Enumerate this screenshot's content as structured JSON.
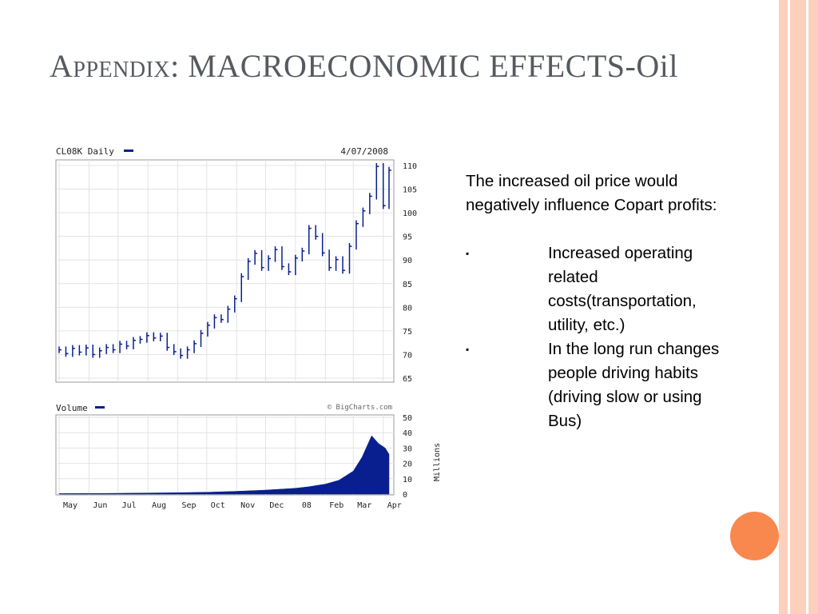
{
  "slide": {
    "title_prefix": "Appendix",
    "title_main": ": MACROECONOMIC EFFECTS-Oil"
  },
  "body": {
    "intro": "The increased oil price would negatively influence Copart profits:",
    "bullet_char": "▪",
    "bullets": [
      "Increased operating related costs(transportation, utility, etc.)",
      "In the long run changes people driving habits (driving slow or using Bus)"
    ]
  },
  "colors": {
    "series": "#0a1f8f",
    "accent_stripe": "#fbd1bd",
    "accent_circle": "#f8884e",
    "title": "#555a5f"
  },
  "chart_data": [
    {
      "type": "line",
      "title": "CL08K Daily",
      "date_label": "4/07/2008",
      "ylim": [
        65,
        110
      ],
      "y_ticks": [
        "110",
        "105",
        "100",
        "95",
        "90",
        "85",
        "80",
        "75",
        "70",
        "65"
      ],
      "x_ticks": [
        "May",
        "Jun",
        "Jul",
        "Aug",
        "Sep",
        "Oct",
        "Nov",
        "Dec",
        "08",
        "Feb",
        "Mar",
        "Apr"
      ],
      "grid": true,
      "series": [
        {
          "name": "CL08K Daily",
          "points": [
            [
              "2007-05-01",
              71.0
            ],
            [
              "2007-05-08",
              70.2
            ],
            [
              "2007-05-15",
              71.3
            ],
            [
              "2007-05-22",
              70.5
            ],
            [
              "2007-05-29",
              71.4
            ],
            [
              "2007-06-05",
              70.0
            ],
            [
              "2007-06-12",
              70.8
            ],
            [
              "2007-06-19",
              71.5
            ],
            [
              "2007-06-26",
              71.0
            ],
            [
              "2007-07-03",
              72.2
            ],
            [
              "2007-07-10",
              71.8
            ],
            [
              "2007-07-17",
              73.0
            ],
            [
              "2007-07-24",
              73.2
            ],
            [
              "2007-07-31",
              74.0
            ],
            [
              "2007-08-07",
              73.5
            ],
            [
              "2007-08-14",
              73.9
            ],
            [
              "2007-08-21",
              71.5
            ],
            [
              "2007-08-28",
              70.6
            ],
            [
              "2007-09-04",
              69.8
            ],
            [
              "2007-09-11",
              71.0
            ],
            [
              "2007-09-18",
              72.3
            ],
            [
              "2007-09-25",
              74.5
            ],
            [
              "2007-10-02",
              76.2
            ],
            [
              "2007-10-09",
              77.8
            ],
            [
              "2007-10-16",
              77.4
            ],
            [
              "2007-10-23",
              79.6
            ],
            [
              "2007-10-30",
              81.8
            ],
            [
              "2007-11-06",
              86.5
            ],
            [
              "2007-11-13",
              89.7
            ],
            [
              "2007-11-20",
              91.4
            ],
            [
              "2007-11-27",
              88.4
            ],
            [
              "2007-12-04",
              90.3
            ],
            [
              "2007-12-11",
              92.2
            ],
            [
              "2007-12-18",
              88.6
            ],
            [
              "2007-12-25",
              87.5
            ],
            [
              "2008-01-01",
              90.4
            ],
            [
              "2008-01-08",
              91.9
            ],
            [
              "2008-01-15",
              96.7
            ],
            [
              "2008-01-22",
              95.0
            ],
            [
              "2008-01-29",
              91.5
            ],
            [
              "2008-02-05",
              88.4
            ],
            [
              "2008-02-12",
              90.1
            ],
            [
              "2008-02-19",
              87.8
            ],
            [
              "2008-02-26",
              92.9
            ],
            [
              "2008-03-04",
              97.7
            ],
            [
              "2008-03-11",
              100.4
            ],
            [
              "2008-03-18",
              103.5
            ],
            [
              "2008-03-25",
              109.8
            ],
            [
              "2008-04-01",
              101.5
            ],
            [
              "2008-04-07",
              109.0
            ]
          ]
        }
      ]
    },
    {
      "type": "area",
      "title": "Volume",
      "watermark": "© BigCharts.com",
      "ylabel": "Millions",
      "ylim": [
        0,
        50
      ],
      "y_ticks": [
        "50",
        "40",
        "30",
        "20",
        "10",
        "0"
      ],
      "grid": true,
      "series": [
        {
          "name": "Volume",
          "points": [
            [
              "2007-05-01",
              0.3
            ],
            [
              "2007-06-01",
              0.4
            ],
            [
              "2007-07-01",
              0.5
            ],
            [
              "2007-08-01",
              0.7
            ],
            [
              "2007-09-01",
              0.9
            ],
            [
              "2007-10-01",
              1.2
            ],
            [
              "2007-11-01",
              1.8
            ],
            [
              "2007-12-01",
              2.6
            ],
            [
              "2008-01-01",
              3.8
            ],
            [
              "2008-01-15",
              4.8
            ],
            [
              "2008-02-01",
              6.5
            ],
            [
              "2008-02-15",
              9.0
            ],
            [
              "2008-03-01",
              15.0
            ],
            [
              "2008-03-10",
              24.0
            ],
            [
              "2008-03-20",
              38.0
            ],
            [
              "2008-03-27",
              33.0
            ],
            [
              "2008-04-03",
              30.0
            ],
            [
              "2008-04-07",
              26.0
            ]
          ]
        }
      ]
    }
  ]
}
